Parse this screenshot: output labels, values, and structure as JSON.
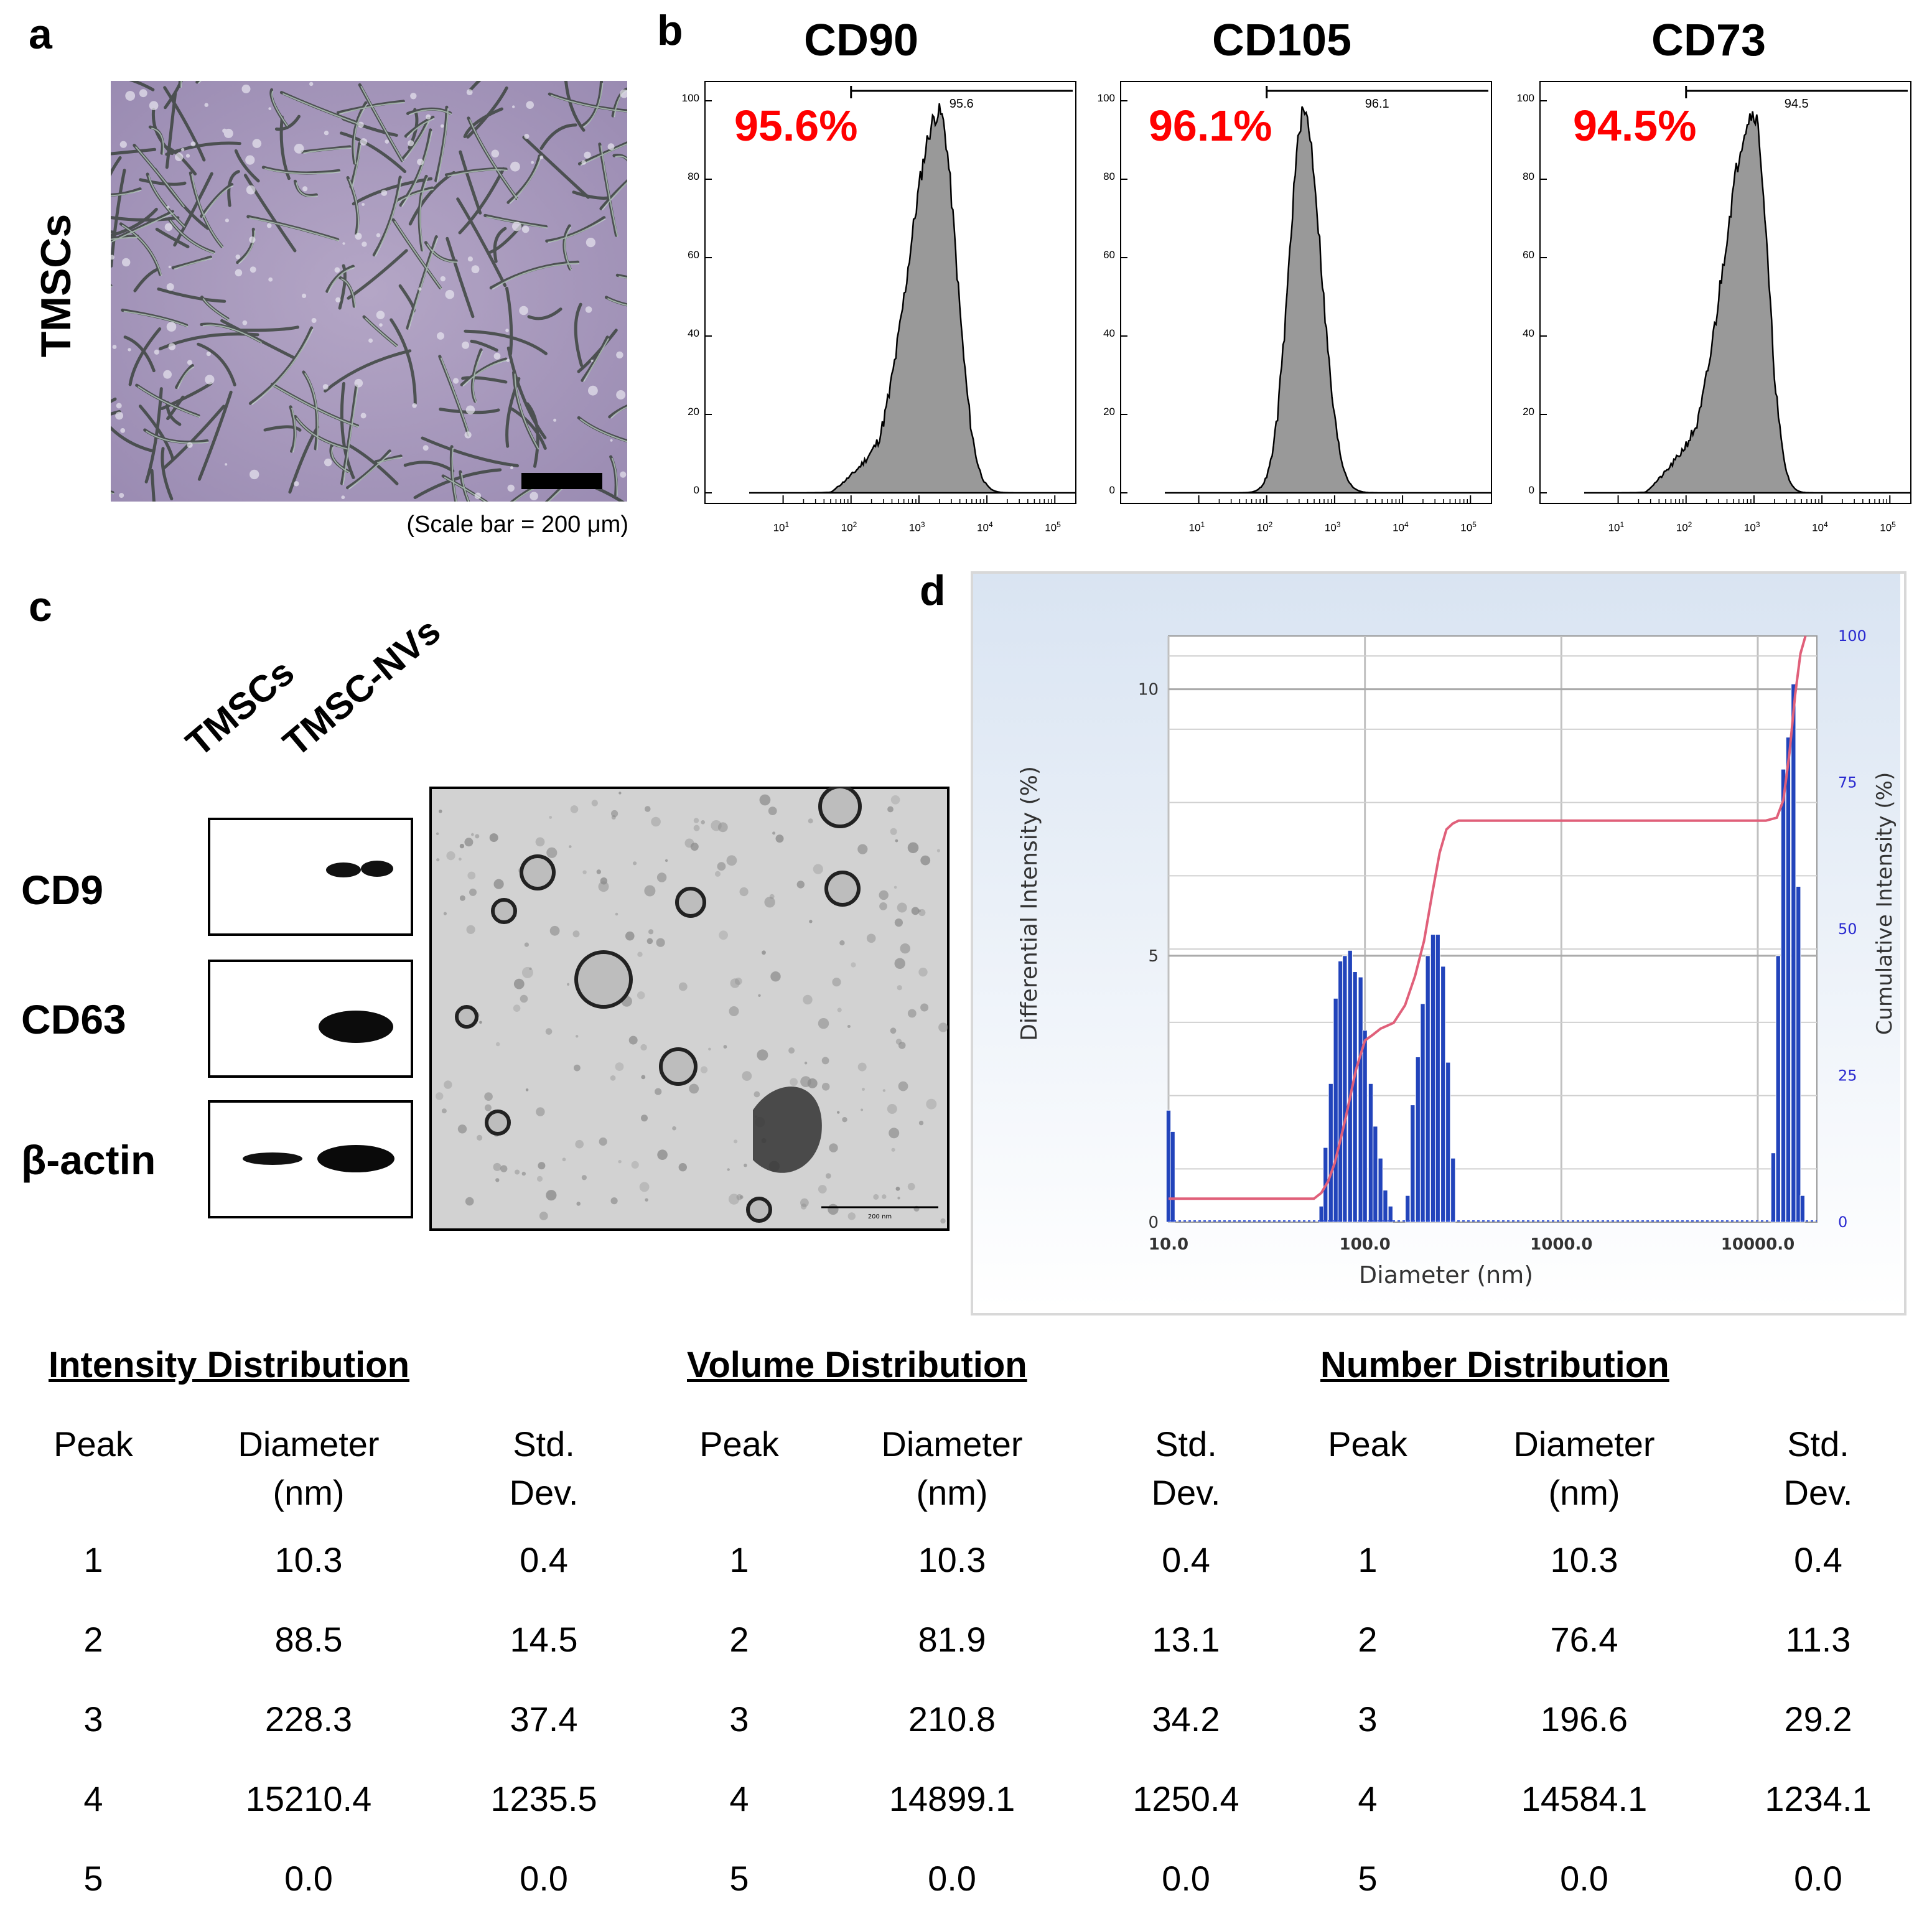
{
  "panel_labels": {
    "a": "a",
    "b": "b",
    "c": "c",
    "d": "d"
  },
  "panel_a": {
    "side_label": "TMSCs",
    "scale_text": "(Scale bar = 200 μm)"
  },
  "panel_b": {
    "y_ticks": [
      "100",
      "80",
      "60",
      "40",
      "20",
      "0"
    ],
    "x_ticks": [
      {
        "base": "10",
        "exp": "1"
      },
      {
        "base": "10",
        "exp": "2"
      },
      {
        "base": "10",
        "exp": "3"
      },
      {
        "base": "10",
        "exp": "4"
      },
      {
        "base": "10",
        "exp": "5"
      }
    ],
    "histograms": [
      {
        "title": "CD90",
        "percent": "95.6%",
        "gate_value": "95.6"
      },
      {
        "title": "CD105",
        "percent": "96.1%",
        "gate_value": "96.1"
      },
      {
        "title": "CD73",
        "percent": "94.5%",
        "gate_value": "94.5"
      }
    ]
  },
  "panel_c": {
    "lanes": [
      "TMSCs",
      "TMSC-NVs"
    ],
    "blots": [
      {
        "label": "CD9"
      },
      {
        "label": "CD63"
      },
      {
        "label": "β-actin"
      }
    ],
    "tem_scale_text": "200 nm"
  },
  "chart_data": {
    "type": "bar",
    "title": "",
    "xlabel": "Diameter (nm)",
    "ylabel": "Differential Intensity (%)",
    "y2label": "Cumulative Intensity (%)",
    "x_scale": "log",
    "xlim": [
      10,
      20000
    ],
    "ylim": [
      0,
      11
    ],
    "y2lim": [
      0,
      100
    ],
    "x_ticks": [
      "10.0",
      "100.0",
      "1000.0",
      "10000.0"
    ],
    "y_ticks": [
      "0",
      "5",
      "10"
    ],
    "y2_ticks": [
      "0",
      "25",
      "50",
      "75",
      "100"
    ],
    "series": [
      {
        "name": "Differential Intensity",
        "color": "#2244bb",
        "x": [
          10.0,
          10.5,
          60,
          63,
          67,
          71,
          75,
          79,
          84,
          89,
          95,
          100,
          107,
          113,
          120,
          127,
          135,
          165,
          175,
          186,
          197,
          209,
          222,
          235,
          250,
          265,
          281,
          12000,
          12700,
          13500,
          14300,
          15200,
          16100,
          16900
        ],
        "values": [
          2.1,
          1.7,
          0.3,
          1.4,
          2.6,
          4.2,
          4.9,
          5.0,
          5.1,
          4.7,
          4.6,
          3.6,
          2.6,
          1.8,
          1.2,
          0.6,
          0.3,
          0.5,
          2.2,
          3.1,
          4.1,
          5.0,
          5.4,
          5.4,
          4.8,
          3.0,
          1.2,
          1.3,
          5.0,
          8.5,
          9.1,
          10.1,
          6.3,
          0.5
        ]
      },
      {
        "name": "Cumulative Intensity",
        "color": "#e0607a",
        "x": [
          10,
          20,
          40,
          55,
          60,
          65,
          70,
          75,
          80,
          90,
          100,
          110,
          120,
          140,
          160,
          180,
          200,
          220,
          240,
          260,
          280,
          300,
          350,
          400,
          1000,
          5000,
          11000,
          12500,
          13500,
          14500,
          15500,
          16500,
          17500
        ],
        "values": [
          4,
          4,
          4,
          4,
          5,
          7,
          10,
          14,
          18,
          26,
          31,
          32,
          33,
          34,
          37,
          42,
          48,
          56,
          63,
          67,
          68,
          68.5,
          68.5,
          68.5,
          68.5,
          68.5,
          68.5,
          69,
          72,
          80,
          90,
          97,
          100
        ]
      }
    ]
  },
  "tables": [
    {
      "title": "Intensity Distribution",
      "headers": [
        "Peak",
        "Diameter\n(nm)",
        "Std.\nDev."
      ],
      "rows": [
        [
          "1",
          "10.3",
          "0.4"
        ],
        [
          "2",
          "88.5",
          "14.5"
        ],
        [
          "3",
          "228.3",
          "37.4"
        ],
        [
          "4",
          "15210.4",
          "1235.5"
        ],
        [
          "5",
          "0.0",
          "0.0"
        ]
      ]
    },
    {
      "title": "Volume Distribution",
      "headers": [
        "Peak",
        "Diameter\n(nm)",
        "Std.\nDev."
      ],
      "rows": [
        [
          "1",
          "10.3",
          "0.4"
        ],
        [
          "2",
          "81.9",
          "13.1"
        ],
        [
          "3",
          "210.8",
          "34.2"
        ],
        [
          "4",
          "14899.1",
          "1250.4"
        ],
        [
          "5",
          "0.0",
          "0.0"
        ]
      ]
    },
    {
      "title": "Number Distribution",
      "headers": [
        "Peak",
        "Diameter\n(nm)",
        "Std.\nDev."
      ],
      "rows": [
        [
          "1",
          "10.3",
          "0.4"
        ],
        [
          "2",
          "76.4",
          "11.3"
        ],
        [
          "3",
          "196.6",
          "29.2"
        ],
        [
          "4",
          "14584.1",
          "1234.1"
        ],
        [
          "5",
          "0.0",
          "0.0"
        ]
      ]
    }
  ]
}
